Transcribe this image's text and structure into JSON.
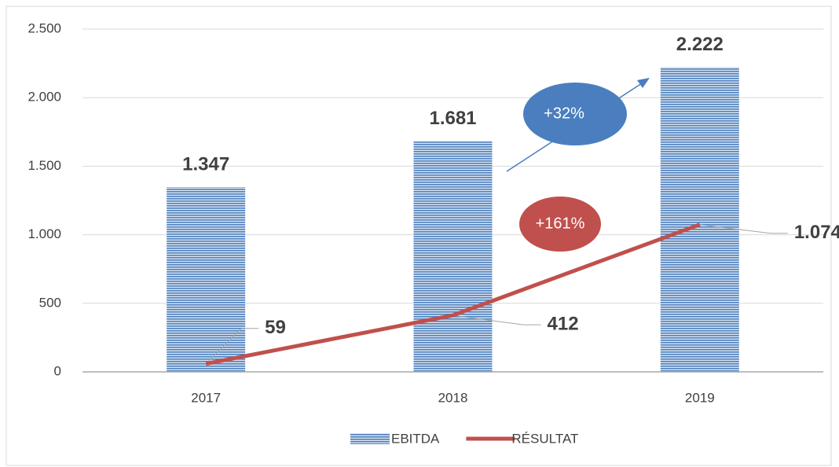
{
  "chart_data": {
    "type": "bar_line",
    "categories": [
      "2017",
      "2018",
      "2019"
    ],
    "series": [
      {
        "name": "EBITDA",
        "type": "bar",
        "color": "#4f81bd",
        "values": [
          1347,
          1681,
          2222
        ],
        "value_labels": [
          "1.347",
          "1.681",
          "2.222"
        ]
      },
      {
        "name": "RÉSULTAT",
        "type": "line",
        "color": "#c0504d",
        "values": [
          59,
          412,
          1074
        ],
        "value_labels": [
          "59",
          "412",
          "1.074"
        ]
      }
    ],
    "ylim": [
      0,
      2500
    ],
    "yticks": [
      0,
      500,
      {
        "value": 1000,
        "label": "1.000"
      },
      {
        "value": 1500,
        "label": "1.500"
      },
      {
        "value": 2000,
        "label": "2.000"
      },
      {
        "value": 2500,
        "label": "2.500"
      }
    ],
    "grid": true,
    "legend": "bottom",
    "annotations": [
      "+32%",
      "+161%"
    ]
  }
}
